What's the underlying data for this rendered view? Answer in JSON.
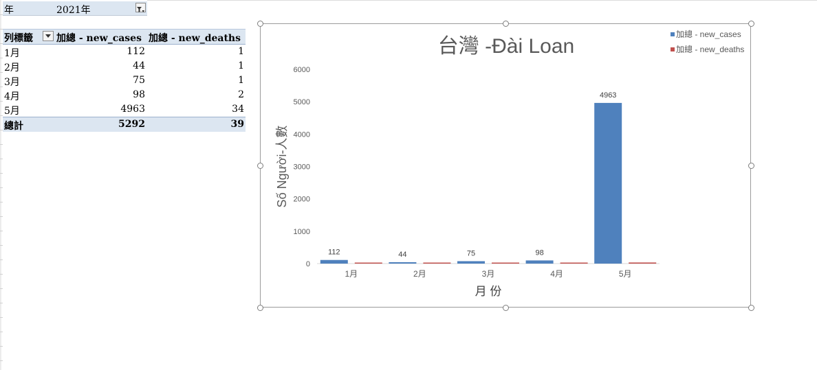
{
  "filter": {
    "field": "年",
    "value": "2021年"
  },
  "pivot": {
    "header": {
      "row_label": "列標籤",
      "col1": "加總 - new_cases",
      "col2": "加總 - new_deaths"
    },
    "rows": [
      {
        "label": "1月",
        "new_cases": "112",
        "new_deaths": "1"
      },
      {
        "label": "2月",
        "new_cases": "44",
        "new_deaths": "1"
      },
      {
        "label": "3月",
        "new_cases": "75",
        "new_deaths": "1"
      },
      {
        "label": "4月",
        "new_cases": "98",
        "new_deaths": "2"
      },
      {
        "label": "5月",
        "new_cases": "4963",
        "new_deaths": "34"
      }
    ],
    "total": {
      "label": "總計",
      "new_cases": "5292",
      "new_deaths": "39"
    }
  },
  "chart_data": {
    "type": "bar",
    "title": "台灣 -Đài Loan",
    "xlabel": "月 份",
    "ylabel": "Số Người-人數",
    "categories": [
      "1月",
      "2月",
      "3月",
      "4月",
      "5月"
    ],
    "series": [
      {
        "name": "加總 - new_cases",
        "values": [
          112,
          44,
          75,
          98,
          4963
        ],
        "color": "#4f81bd",
        "data_labels": [
          "112",
          "44",
          "75",
          "98",
          "4963"
        ]
      },
      {
        "name": "加總 - new_deaths",
        "values": [
          1,
          1,
          1,
          2,
          34
        ],
        "color": "#c0504d"
      }
    ],
    "ylim": [
      0,
      6000
    ],
    "yticks": [
      "0",
      "1000",
      "2000",
      "3000",
      "4000",
      "5000",
      "6000"
    ],
    "grid": false,
    "legend_position": "top-right"
  }
}
